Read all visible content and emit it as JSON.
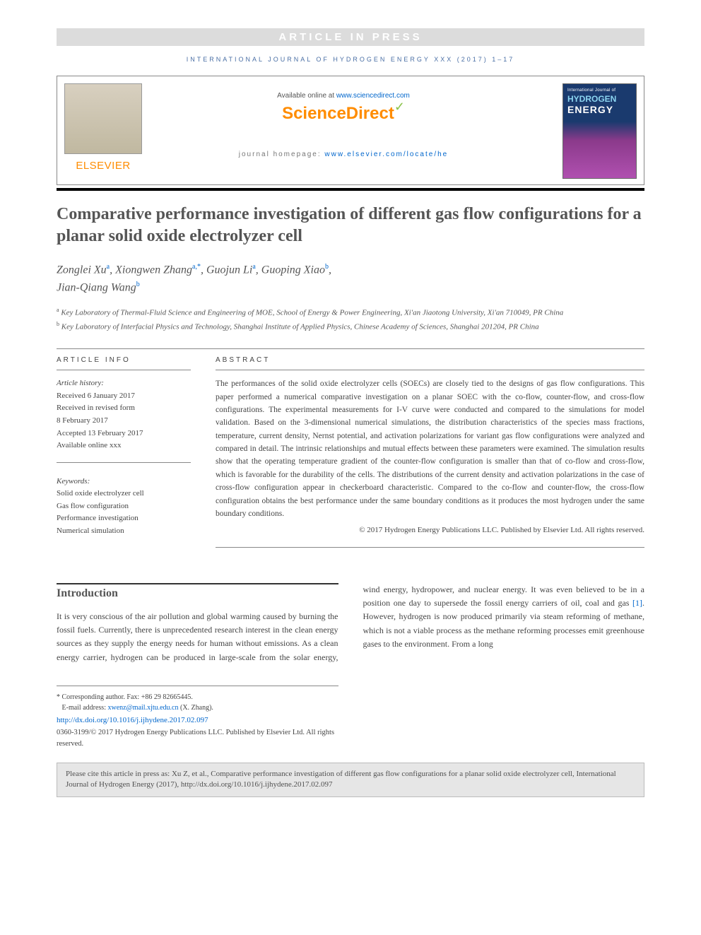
{
  "banner": "ARTICLE IN PRESS",
  "journal_line": "INTERNATIONAL JOURNAL OF HYDROGEN ENERGY XXX (2017) 1–17",
  "header": {
    "available_prefix": "Available online at ",
    "available_link": "www.sciencedirect.com",
    "scidirect": "ScienceDirect",
    "homepage_prefix": "journal homepage: ",
    "homepage_link": "www.elsevier.com/locate/he",
    "elsevier": "ELSEVIER",
    "cover_small": "International Journal of",
    "cover_line1": "HYDROGEN",
    "cover_line2": "ENERGY"
  },
  "title": "Comparative performance investigation of different gas flow configurations for a planar solid oxide electrolyzer cell",
  "authors_line1": "Zonglei Xu",
  "authors_a1sup": "a",
  "authors_name2": ", Xiongwen Zhang",
  "authors_a2sup": "a,*",
  "authors_name3": ", Guojun Li",
  "authors_a3sup": "a",
  "authors_name4": ", Guoping Xiao",
  "authors_a4sup": "b",
  "authors_name5": "Jian-Qiang Wang",
  "authors_a5sup": "b",
  "affil_a": "Key Laboratory of Thermal-Fluid Science and Engineering of MOE, School of Energy & Power Engineering, Xi'an Jiaotong University, Xi'an 710049, PR China",
  "affil_b": "Key Laboratory of Interfacial Physics and Technology, Shanghai Institute of Applied Physics, Chinese Academy of Sciences, Shanghai 201204, PR China",
  "info_heading": "ARTICLE INFO",
  "abstract_heading": "ABSTRACT",
  "history": {
    "label": "Article history:",
    "l1": "Received 6 January 2017",
    "l2": "Received in revised form",
    "l3": "8 February 2017",
    "l4": "Accepted 13 February 2017",
    "l5": "Available online xxx"
  },
  "keywords": {
    "label": "Keywords:",
    "k1": "Solid oxide electrolyzer cell",
    "k2": "Gas flow configuration",
    "k3": "Performance investigation",
    "k4": "Numerical simulation"
  },
  "abstract": "The performances of the solid oxide electrolyzer cells (SOECs) are closely tied to the designs of gas flow configurations. This paper performed a numerical comparative investigation on a planar SOEC with the co-flow, counter-flow, and cross-flow configurations. The experimental measurements for I-V curve were conducted and compared to the simulations for model validation. Based on the 3-dimensional numerical simulations, the distribution characteristics of the species mass fractions, temperature, current density, Nernst potential, and activation polarizations for variant gas flow configurations were analyzed and compared in detail. The intrinsic relationships and mutual effects between these parameters were examined. The simulation results show that the operating temperature gradient of the counter-flow configuration is smaller than that of co-flow and cross-flow, which is favorable for the durability of the cells. The distributions of the current density and activation polarizations in the case of cross-flow configuration appear in checkerboard characteristic. Compared to the co-flow and counter-flow, the cross-flow configuration obtains the best performance under the same boundary conditions as it produces the most hydrogen under the same boundary conditions.",
  "abstract_copy": "© 2017 Hydrogen Energy Publications LLC. Published by Elsevier Ltd. All rights reserved.",
  "intro_heading": "Introduction",
  "intro_p1": "It is very conscious of the air pollution and global warming caused by burning the fossil fuels. Currently, there is unprecedented research interest in the clean energy sources as they supply the energy needs for human without emissions. As a clean energy carrier, hydrogen can be",
  "intro_p2a": "produced in large-scale from the solar energy, wind energy, hydropower, and nuclear energy. It was even believed to be in a position one day to supersede the fossil energy carriers of oil, coal and gas ",
  "intro_ref1": "[1]",
  "intro_p2b": ". However, hydrogen is now produced primarily via steam reforming of methane, which is not a viable process as the methane reforming processes emit greenhouse gases to the environment. From a long",
  "footnote": {
    "corr": "* Corresponding author. Fax: +86 29 82665445.",
    "email_label": "E-mail address: ",
    "email": "xwenz@mail.xjtu.edu.cn",
    "email_suffix": " (X. Zhang).",
    "doi": "http://dx.doi.org/10.1016/j.ijhydene.2017.02.097",
    "copy": "0360-3199/© 2017 Hydrogen Energy Publications LLC. Published by Elsevier Ltd. All rights reserved."
  },
  "citebox": "Please cite this article in press as: Xu Z, et al., Comparative performance investigation of different gas flow configurations for a planar solid oxide electrolyzer cell, International Journal of Hydrogen Energy (2017), http://dx.doi.org/10.1016/j.ijhydene.2017.02.097"
}
